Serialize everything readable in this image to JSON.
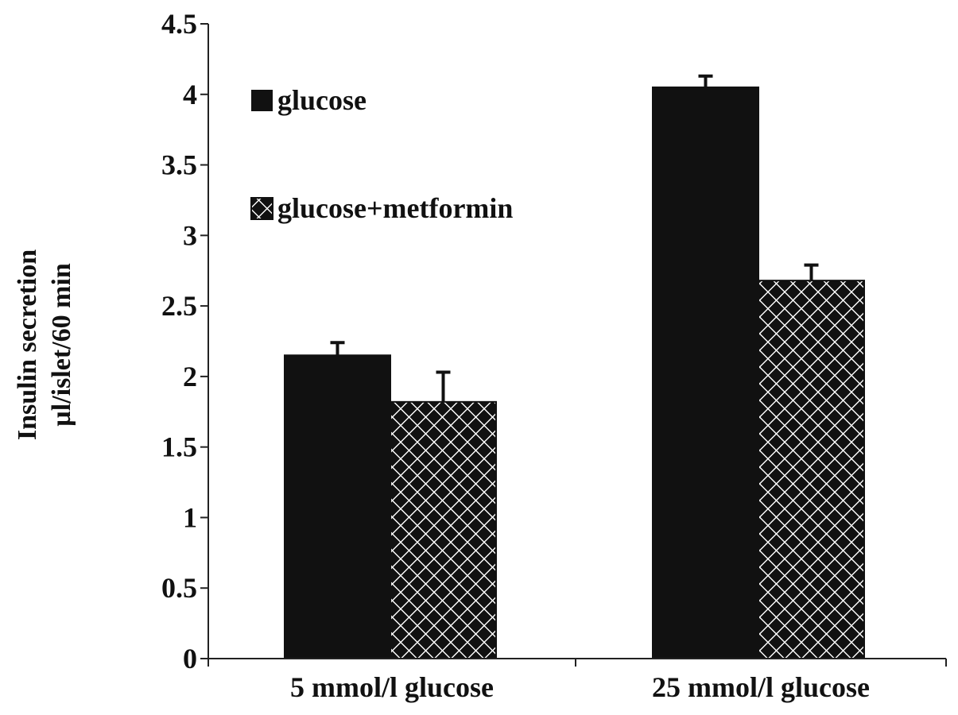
{
  "chart_data": {
    "type": "bar",
    "categories": [
      "5 mmol/l glucose",
      "25 mmol/l glucose"
    ],
    "series": [
      {
        "name": "glucose",
        "values": [
          2.15,
          4.05
        ],
        "errors": [
          0.09,
          0.08
        ],
        "fill": "solid"
      },
      {
        "name": "glucose+metformin",
        "values": [
          1.82,
          2.68
        ],
        "errors": [
          0.21,
          0.11
        ],
        "fill": "checker"
      }
    ],
    "title": "",
    "xlabel": "",
    "ylabel_lines": [
      "Insulin secretion",
      "µl/islet/60 min"
    ],
    "ylim": [
      0,
      4.5
    ],
    "yticks": [
      0,
      0.5,
      1,
      1.5,
      2,
      2.5,
      3,
      3.5,
      4,
      4.5
    ],
    "ytick_labels": [
      "0",
      "0.5",
      "1",
      "1.5",
      "2",
      "2.5",
      "3",
      "3.5",
      "4",
      "4.5"
    ],
    "grid": false,
    "legend_position": "top-left"
  },
  "colors": {
    "bar": "#111111",
    "pattern_bg": "#ffffff",
    "axis": "#222222"
  }
}
